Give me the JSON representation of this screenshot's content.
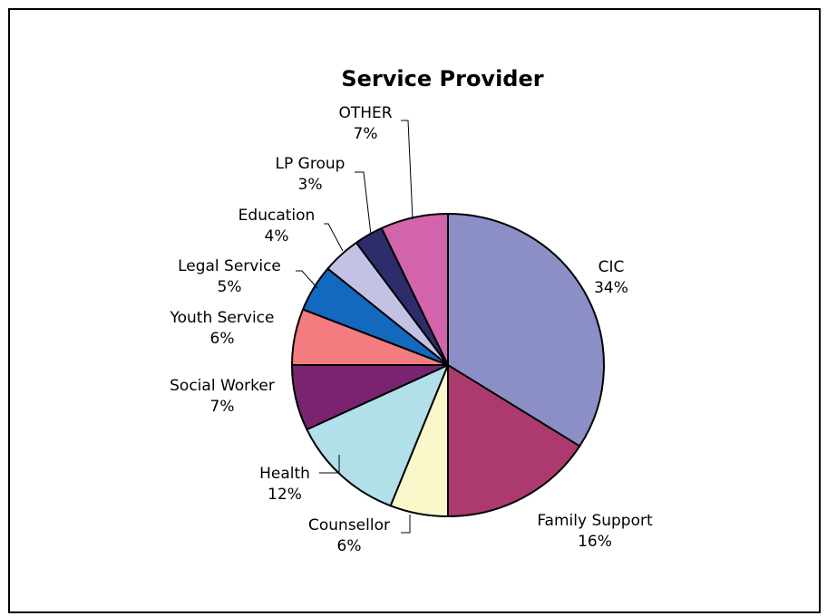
{
  "chart_data": {
    "type": "pie",
    "title": "Service Provider",
    "slices": [
      {
        "label": "CIC",
        "value": 34,
        "display": "34%",
        "color": "#8b8fc6"
      },
      {
        "label": "Family Support",
        "value": 16,
        "display": "16%",
        "color": "#ad3a6f"
      },
      {
        "label": "Counsellor",
        "value": 6,
        "display": "6%",
        "color": "#faf8cb"
      },
      {
        "label": "Health",
        "value": 12,
        "display": "12%",
        "color": "#b2e0ea"
      },
      {
        "label": "Social Worker",
        "value": 7,
        "display": "7%",
        "color": "#7a2470"
      },
      {
        "label": "Youth Service",
        "value": 6,
        "display": "6%",
        "color": "#f27c80"
      },
      {
        "label": "Legal Service",
        "value": 5,
        "display": "5%",
        "color": "#1369bd"
      },
      {
        "label": "Education",
        "value": 4,
        "display": "4%",
        "color": "#c4c2e4"
      },
      {
        "label": "LP Group",
        "value": 3,
        "display": "3%",
        "color": "#2e2d6b"
      },
      {
        "label": "OTHER",
        "value": 7,
        "display": "7%",
        "color": "#d264ab"
      }
    ]
  }
}
